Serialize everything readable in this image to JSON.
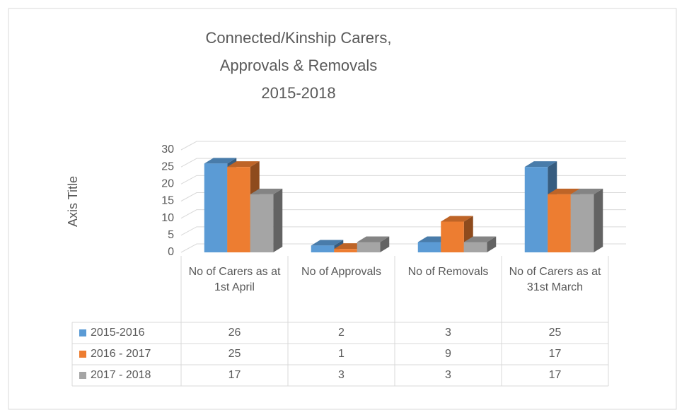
{
  "chart_data": {
    "type": "bar3d",
    "title": [
      "Connected/Kinship Carers,",
      "Approvals & Removals",
      "2015-2018"
    ],
    "y_axis_title": "Axis Title",
    "categories": [
      "No of Carers as at 1st April",
      "No of Approvals",
      "No of Removals",
      "No of Carers as at 31st March"
    ],
    "series": [
      {
        "name": "2015-2016",
        "color": "#5b9bd5",
        "values": [
          26,
          2,
          3,
          25
        ]
      },
      {
        "name": "2016 - 2017",
        "color": "#ed7d31",
        "values": [
          25,
          1,
          9,
          17
        ]
      },
      {
        "name": "2017 - 2018",
        "color": "#a5a5a5",
        "values": [
          17,
          3,
          3,
          17
        ]
      }
    ],
    "ylim": [
      0,
      30
    ],
    "yticks": [
      0,
      5,
      10,
      15,
      20,
      25,
      30
    ],
    "grid": true,
    "data_table": true
  }
}
